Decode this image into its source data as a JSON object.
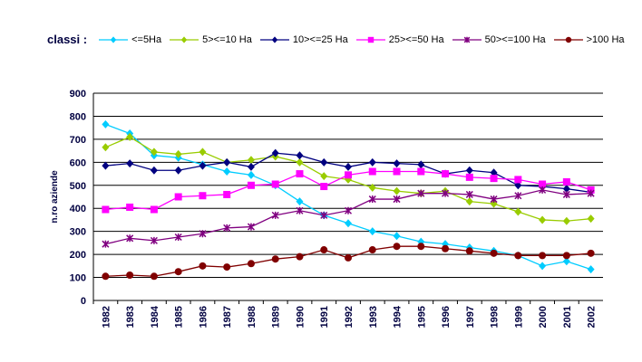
{
  "chart_data": {
    "type": "line",
    "legend_title": "classi :",
    "ylabel": "n.ro aziende",
    "xlabel": "",
    "ylim": [
      0,
      900
    ],
    "yticks": [
      0,
      100,
      200,
      300,
      400,
      500,
      600,
      700,
      800,
      900
    ],
    "grid": true,
    "legend_placement": "top",
    "x": [
      "1982",
      "1983",
      "1984",
      "1985",
      "1986",
      "1987",
      "1988",
      "1989",
      "1990",
      "1991",
      "1992",
      "1993",
      "1994",
      "1995",
      "1996",
      "1997",
      "1998",
      "1999",
      "2000",
      "2001",
      "2002"
    ],
    "series": [
      {
        "name": "<=5Ha",
        "color": "#00CCFF",
        "marker": "diamond",
        "values": [
          765,
          725,
          630,
          620,
          590,
          560,
          545,
          500,
          430,
          370,
          335,
          300,
          280,
          255,
          245,
          230,
          215,
          195,
          150,
          170,
          135
        ]
      },
      {
        "name": "5><=10 Ha",
        "color": "#99CC00",
        "marker": "diamond",
        "values": [
          665,
          710,
          645,
          635,
          645,
          600,
          610,
          625,
          600,
          540,
          525,
          490,
          475,
          465,
          475,
          430,
          420,
          385,
          350,
          345,
          355
        ]
      },
      {
        "name": "10><=25 Ha",
        "color": "#000080",
        "marker": "diamond",
        "values": [
          585,
          595,
          565,
          565,
          585,
          600,
          580,
          640,
          630,
          600,
          580,
          600,
          595,
          590,
          550,
          565,
          555,
          500,
          495,
          485,
          470
        ]
      },
      {
        "name": "25><=50 Ha",
        "color": "#FF00FF",
        "marker": "square",
        "values": [
          395,
          405,
          395,
          450,
          455,
          460,
          500,
          505,
          550,
          495,
          545,
          560,
          560,
          560,
          550,
          535,
          530,
          525,
          505,
          515,
          480
        ]
      },
      {
        "name": "50><=100 Ha",
        "color": "#800080",
        "marker": "star",
        "values": [
          245,
          270,
          260,
          275,
          290,
          315,
          320,
          370,
          390,
          370,
          390,
          440,
          440,
          465,
          465,
          460,
          440,
          455,
          480,
          460,
          465
        ]
      },
      {
        "name": ">100 Ha",
        "color": "#800000",
        "marker": "circle",
        "values": [
          105,
          110,
          105,
          125,
          150,
          145,
          160,
          180,
          190,
          220,
          185,
          220,
          235,
          235,
          225,
          215,
          205,
          195,
          195,
          195,
          205
        ]
      }
    ]
  }
}
